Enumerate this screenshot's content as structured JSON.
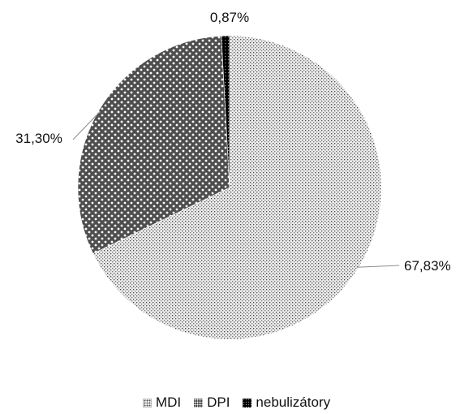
{
  "chart_data": {
    "type": "pie",
    "categories": [
      "MDI",
      "DPI",
      "nebulizátory"
    ],
    "values": [
      67.83,
      31.3,
      0.87
    ],
    "value_labels": [
      "67,83%",
      "31,30%",
      "0,87%"
    ],
    "legend": {
      "placement": "bottom",
      "entries": [
        "MDI",
        "DPI",
        "nebulizátory"
      ]
    },
    "start_angle": "12 o'clock",
    "direction": "clockwise",
    "fills": [
      "#d9d9d9",
      "#5a5a5a",
      "#000000"
    ]
  }
}
